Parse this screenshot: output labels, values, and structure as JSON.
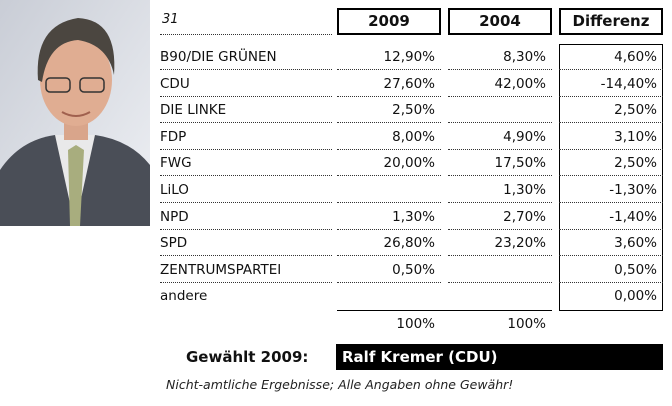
{
  "header": {
    "number": "31",
    "columns": [
      "2009",
      "2004",
      "Differenz"
    ]
  },
  "table": {
    "rows": [
      [
        "B90/DIE GRÜNEN",
        "12,90%",
        "8,30%",
        "4,60%"
      ],
      [
        "CDU",
        "27,60%",
        "42,00%",
        "-14,40%"
      ],
      [
        "DIE LINKE",
        "2,50%",
        null,
        "2,50%"
      ],
      [
        "FDP",
        "8,00%",
        "4,90%",
        "3,10%"
      ],
      [
        "FWG",
        "20,00%",
        "17,50%",
        "2,50%"
      ],
      [
        "LiLO",
        null,
        "1,30%",
        "-1,30%"
      ],
      [
        "NPD",
        "1,30%",
        "2,70%",
        "-1,40%"
      ],
      [
        "SPD",
        "26,80%",
        "23,20%",
        "3,60%"
      ],
      [
        "ZENTRUMSPARTEI",
        "0,50%",
        null,
        "0,50%"
      ],
      [
        "andere",
        null,
        null,
        "0,00%"
      ]
    ],
    "totals": [
      "100%",
      "100%"
    ]
  },
  "elected": {
    "label": "Gewählt 2009:",
    "name": "Ralf Kremer (CDU)"
  },
  "note": "Nicht-amtliche Ergebnisse; Alle Angaben ohne Gewähr!"
}
